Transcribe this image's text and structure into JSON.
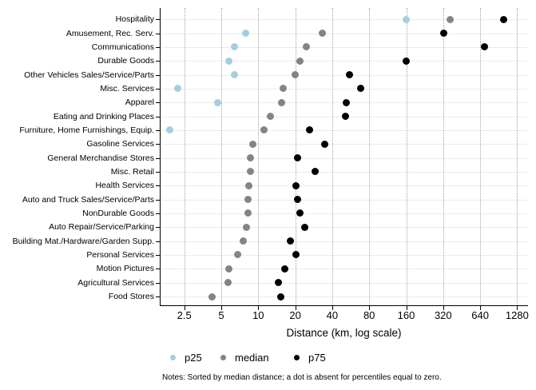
{
  "chart_data": {
    "type": "scatter",
    "title": "",
    "xlabel": "Distance (km, log scale)",
    "ylabel": "",
    "x_scale": "log",
    "x_base_value": 2.5,
    "x_ticks": [
      2.5,
      5,
      10,
      20,
      40,
      80,
      160,
      320,
      640,
      1280
    ],
    "x_tick_labels": [
      "2.5",
      "5",
      "10",
      "20",
      "40",
      "80",
      "160",
      "320",
      "640",
      "1280"
    ],
    "x_range": [
      1.6,
      1550
    ],
    "grid": true,
    "legend_position": "bottom",
    "series_names": [
      "p25",
      "median",
      "p75"
    ],
    "colors": {
      "p25": "#a5cde0",
      "median": "#848484",
      "p75": "#000000"
    },
    "rows": [
      {
        "label": "Hospitality",
        "p25": 160,
        "median": 363,
        "p75": 1000
      },
      {
        "label": "Amusement, Rec. Serv.",
        "p25": 7.9,
        "median": 33,
        "p75": 325
      },
      {
        "label": "Communications",
        "p25": 6.4,
        "median": 24.6,
        "p75": 690
      },
      {
        "label": "Durable Goods",
        "p25": 5.8,
        "median": 22,
        "p75": 160
      },
      {
        "label": "Other Vehicles Sales/Service/Parts",
        "p25": 6.4,
        "median": 20,
        "p75": 55
      },
      {
        "label": "Misc. Services",
        "p25": 2.2,
        "median": 15.9,
        "p75": 68
      },
      {
        "label": "Apparel",
        "p25": 4.7,
        "median": 15.4,
        "p75": 52
      },
      {
        "label": "Eating and Drinking Places",
        "p25": null,
        "median": 12.5,
        "p75": 51
      },
      {
        "label": "Furniture, Home Furnishings, Equip.",
        "p25": 1.9,
        "median": 11.2,
        "p75": 26
      },
      {
        "label": "Gasoline Services",
        "p25": null,
        "median": 9.0,
        "p75": 34.5
      },
      {
        "label": "General Merchandise Stores",
        "p25": null,
        "median": 8.7,
        "p75": 21
      },
      {
        "label": "Misc. Retail",
        "p25": null,
        "median": 8.7,
        "p75": 29
      },
      {
        "label": "Health Services",
        "p25": null,
        "median": 8.4,
        "p75": 20.4
      },
      {
        "label": "Auto and Truck Sales/Service/Parts",
        "p25": null,
        "median": 8.3,
        "p75": 21
      },
      {
        "label": "NonDurable Goods",
        "p25": null,
        "median": 8.3,
        "p75": 22
      },
      {
        "label": "Auto Repair/Service/Parking",
        "p25": null,
        "median": 8.0,
        "p75": 24
      },
      {
        "label": "Building Mat./Hardware/Garden Supp.",
        "p25": null,
        "median": 7.6,
        "p75": 18.2
      },
      {
        "label": "Personal Services",
        "p25": null,
        "median": 6.8,
        "p75": 20.4
      },
      {
        "label": "Motion Pictures",
        "p25": null,
        "median": 5.8,
        "p75": 16.5
      },
      {
        "label": "Agricultural Services",
        "p25": null,
        "median": 5.7,
        "p75": 14.5
      },
      {
        "label": "Food Stores",
        "p25": null,
        "median": 4.2,
        "p75": 15.3
      }
    ],
    "legend": [
      {
        "label": "p25",
        "color": "#a5cde0"
      },
      {
        "label": "median",
        "color": "#848484"
      },
      {
        "label": "p75",
        "color": "#000000"
      }
    ],
    "notes": "Notes: Sorted by median distance; a dot is absent for percentiles equal to zero."
  }
}
